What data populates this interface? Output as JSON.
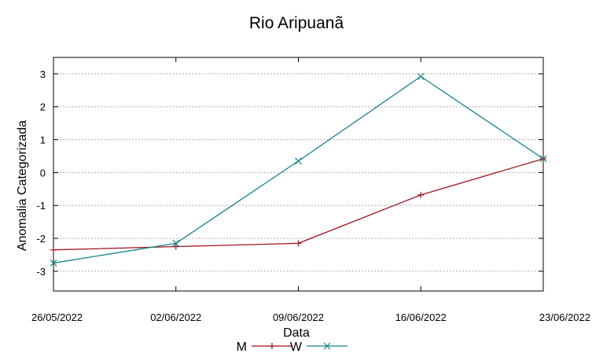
{
  "chart_data": {
    "type": "line",
    "title": "Rio Aripuanã",
    "xlabel": "Data",
    "ylabel": "Anomalia Categorizada",
    "x": [
      "26/05/2022",
      "02/06/2022",
      "09/06/2022",
      "16/06/2022",
      "23/06/2022"
    ],
    "ylim": [
      -3.6,
      3.5
    ],
    "yticks": [
      -3,
      -2,
      -1,
      0,
      1,
      2,
      3
    ],
    "grid": true,
    "legend_position": "bottom-center",
    "series": [
      {
        "name": "M",
        "color": "#a0141e",
        "marker": "plus",
        "values": [
          -2.35,
          -2.25,
          -2.15,
          -0.68,
          0.42
        ]
      },
      {
        "name": "W",
        "color": "#14828c",
        "marker": "x",
        "values": [
          -2.75,
          -2.15,
          0.35,
          2.92,
          0.42
        ]
      }
    ]
  }
}
